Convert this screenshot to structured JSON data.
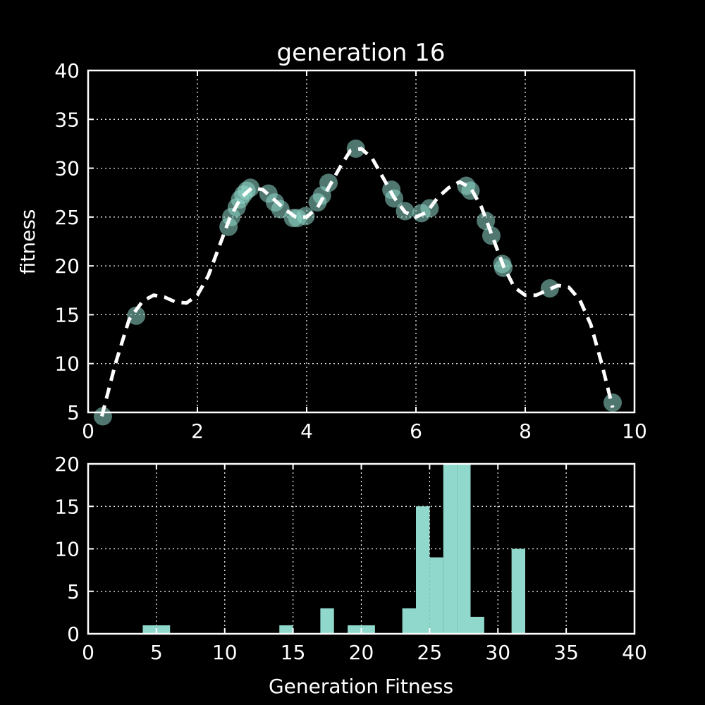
{
  "chart_data": [
    {
      "type": "scatter",
      "title": "generation 16",
      "xlabel": "",
      "ylabel": "fitness",
      "xlim": [
        0,
        10
      ],
      "ylim": [
        5,
        40
      ],
      "xticks": [
        0,
        2,
        4,
        6,
        8,
        10
      ],
      "yticks": [
        5,
        10,
        15,
        20,
        25,
        30,
        35,
        40
      ],
      "grid": true,
      "colors": {
        "background": "#000000",
        "axes": "#ffffff",
        "points": "#8fd8cb",
        "curve": "#ffffff",
        "grid": "#ffffff"
      },
      "series": [
        {
          "kind": "line",
          "style": "dashed",
          "points": [
            [
              0.25,
              4.6
            ],
            [
              0.5,
              10.0
            ],
            [
              0.75,
              14.5
            ],
            [
              1.0,
              16.4
            ],
            [
              1.2,
              17.0
            ],
            [
              1.4,
              16.8
            ],
            [
              1.6,
              16.3
            ],
            [
              1.8,
              16.2
            ],
            [
              2.0,
              17.0
            ],
            [
              2.2,
              19.0
            ],
            [
              2.4,
              22.0
            ],
            [
              2.6,
              25.0
            ],
            [
              2.8,
              27.0
            ],
            [
              3.0,
              28.0
            ],
            [
              3.2,
              27.8
            ],
            [
              3.4,
              26.8
            ],
            [
              3.6,
              25.8
            ],
            [
              3.8,
              25.0
            ],
            [
              4.0,
              25.0
            ],
            [
              4.2,
              26.0
            ],
            [
              4.4,
              28.0
            ],
            [
              4.6,
              30.0
            ],
            [
              4.8,
              31.8
            ],
            [
              5.0,
              32.0
            ],
            [
              5.2,
              31.0
            ],
            [
              5.4,
              29.0
            ],
            [
              5.6,
              27.0
            ],
            [
              5.8,
              25.5
            ],
            [
              6.0,
              25.0
            ],
            [
              6.2,
              25.5
            ],
            [
              6.4,
              27.0
            ],
            [
              6.6,
              28.0
            ],
            [
              6.8,
              28.6
            ],
            [
              7.0,
              28.0
            ],
            [
              7.2,
              26.0
            ],
            [
              7.4,
              23.0
            ],
            [
              7.6,
              20.0
            ],
            [
              7.8,
              17.8
            ],
            [
              8.0,
              17.0
            ],
            [
              8.2,
              17.0
            ],
            [
              8.4,
              17.5
            ],
            [
              8.6,
              18.0
            ],
            [
              8.8,
              17.8
            ],
            [
              9.0,
              16.5
            ],
            [
              9.2,
              14.0
            ],
            [
              9.4,
              10.0
            ],
            [
              9.6,
              5.5
            ]
          ]
        },
        {
          "kind": "scatter",
          "points": [
            [
              0.27,
              4.6
            ],
            [
              0.88,
              14.9
            ],
            [
              2.57,
              24.0
            ],
            [
              2.62,
              25.0
            ],
            [
              2.72,
              26.0
            ],
            [
              2.78,
              26.8
            ],
            [
              2.84,
              27.3
            ],
            [
              2.9,
              27.7
            ],
            [
              2.97,
              28.0
            ],
            [
              3.3,
              27.4
            ],
            [
              3.42,
              26.5
            ],
            [
              3.52,
              25.8
            ],
            [
              3.75,
              24.9
            ],
            [
              3.83,
              24.9
            ],
            [
              3.98,
              25.1
            ],
            [
              4.2,
              26.5
            ],
            [
              4.28,
              27.2
            ],
            [
              4.4,
              28.5
            ],
            [
              4.9,
              32.0
            ],
            [
              5.55,
              27.8
            ],
            [
              5.6,
              26.9
            ],
            [
              5.8,
              25.6
            ],
            [
              6.1,
              25.4
            ],
            [
              6.25,
              25.9
            ],
            [
              6.92,
              28.2
            ],
            [
              7.0,
              27.7
            ],
            [
              7.28,
              24.6
            ],
            [
              7.38,
              23.1
            ],
            [
              7.58,
              20.2
            ],
            [
              7.6,
              19.8
            ],
            [
              8.45,
              17.7
            ],
            [
              9.6,
              6.0
            ]
          ]
        }
      ]
    },
    {
      "type": "bar",
      "subtype": "histogram",
      "title": "",
      "xlabel": "Generation Fitness",
      "ylabel": "",
      "xlim": [
        0,
        40
      ],
      "ylim": [
        0,
        20
      ],
      "xticks": [
        0,
        5,
        10,
        15,
        20,
        25,
        30,
        35,
        40
      ],
      "yticks": [
        0,
        5,
        10,
        15,
        20
      ],
      "grid": true,
      "bins": [
        {
          "x0": 4.0,
          "x1": 5.0,
          "count": 1
        },
        {
          "x0": 5.0,
          "x1": 6.0,
          "count": 1
        },
        {
          "x0": 14.0,
          "x1": 15.0,
          "count": 1
        },
        {
          "x0": 17.0,
          "x1": 18.0,
          "count": 3
        },
        {
          "x0": 19.0,
          "x1": 20.0,
          "count": 1
        },
        {
          "x0": 20.0,
          "x1": 21.0,
          "count": 1
        },
        {
          "x0": 23.0,
          "x1": 24.0,
          "count": 3
        },
        {
          "x0": 24.0,
          "x1": 25.0,
          "count": 15
        },
        {
          "x0": 25.0,
          "x1": 26.0,
          "count": 9
        },
        {
          "x0": 26.0,
          "x1": 27.0,
          "count": 20
        },
        {
          "x0": 27.0,
          "x1": 28.0,
          "count": 20
        },
        {
          "x0": 28.0,
          "x1": 29.0,
          "count": 2
        },
        {
          "x0": 31.0,
          "x1": 32.0,
          "count": 10
        }
      ]
    }
  ]
}
